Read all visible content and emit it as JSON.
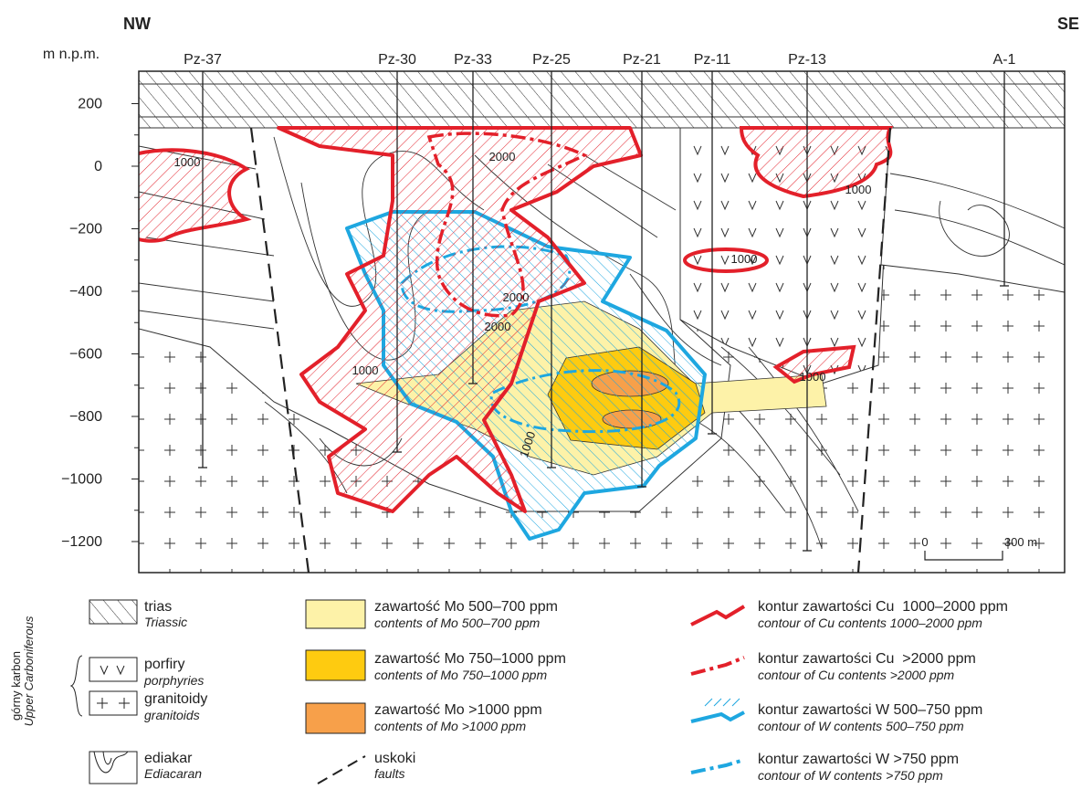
{
  "header": {
    "left": "NW",
    "right": "SE"
  },
  "axis": {
    "title": "m n.p.m.",
    "ticks": [
      {
        "value": 200,
        "label": "200"
      },
      {
        "value": 0,
        "label": "0"
      },
      {
        "value": -200,
        "label": "−200"
      },
      {
        "value": -400,
        "label": "−400"
      },
      {
        "value": -600,
        "label": "−600"
      },
      {
        "value": -800,
        "label": "−800"
      },
      {
        "value": -1000,
        "label": "−1000"
      },
      {
        "value": -1200,
        "label": "−1200"
      }
    ]
  },
  "boreholes": [
    "Pz-37",
    "Pz-30",
    "Pz-33",
    "Pz-25",
    "Pz-21",
    "Pz-11",
    "Pz-13",
    "A-1"
  ],
  "contour_labels": [
    "1000",
    "2000",
    "1000",
    "1000",
    "2000",
    "2000",
    "1000",
    "1000",
    "1000"
  ],
  "scale_bar": {
    "start": "0",
    "end": "300 m"
  },
  "legend": {
    "group": {
      "label": "górny karbon",
      "sublabel": "Upper Carboniferous"
    },
    "items": [
      {
        "label": "trias",
        "sublabel": "Triassic"
      },
      {
        "label": "porfiry",
        "sublabel": "porphyries"
      },
      {
        "label": "granitoidy",
        "sublabel": "granitoids"
      },
      {
        "label": "ediakar",
        "sublabel": "Ediacaran"
      },
      {
        "label": "zawartość Mo 500–700 ppm",
        "sublabel": "contents of Mo 500–700 ppm"
      },
      {
        "label": "zawartość Mo 750–1000 ppm",
        "sublabel": "contents of Mo 750–1000 ppm"
      },
      {
        "label": "zawartość Mo >1000 ppm",
        "sublabel": "contents of Mo >1000 ppm"
      },
      {
        "label": "uskoki",
        "sublabel": "faults"
      },
      {
        "label": "kontur zawartości Cu  1000–2000 ppm",
        "sublabel": "contour of Cu contents 1000–2000 ppm"
      },
      {
        "label": "kontur zawartości Cu  >2000 ppm",
        "sublabel": "contour of Cu contents >2000 ppm"
      },
      {
        "label": "kontur zawartości W 500–750 ppm",
        "sublabel": "contour of W contents 500–750 ppm"
      },
      {
        "label": "kontur zawartości W >750 ppm",
        "sublabel": "contour of W contents >750 ppm"
      }
    ]
  }
}
